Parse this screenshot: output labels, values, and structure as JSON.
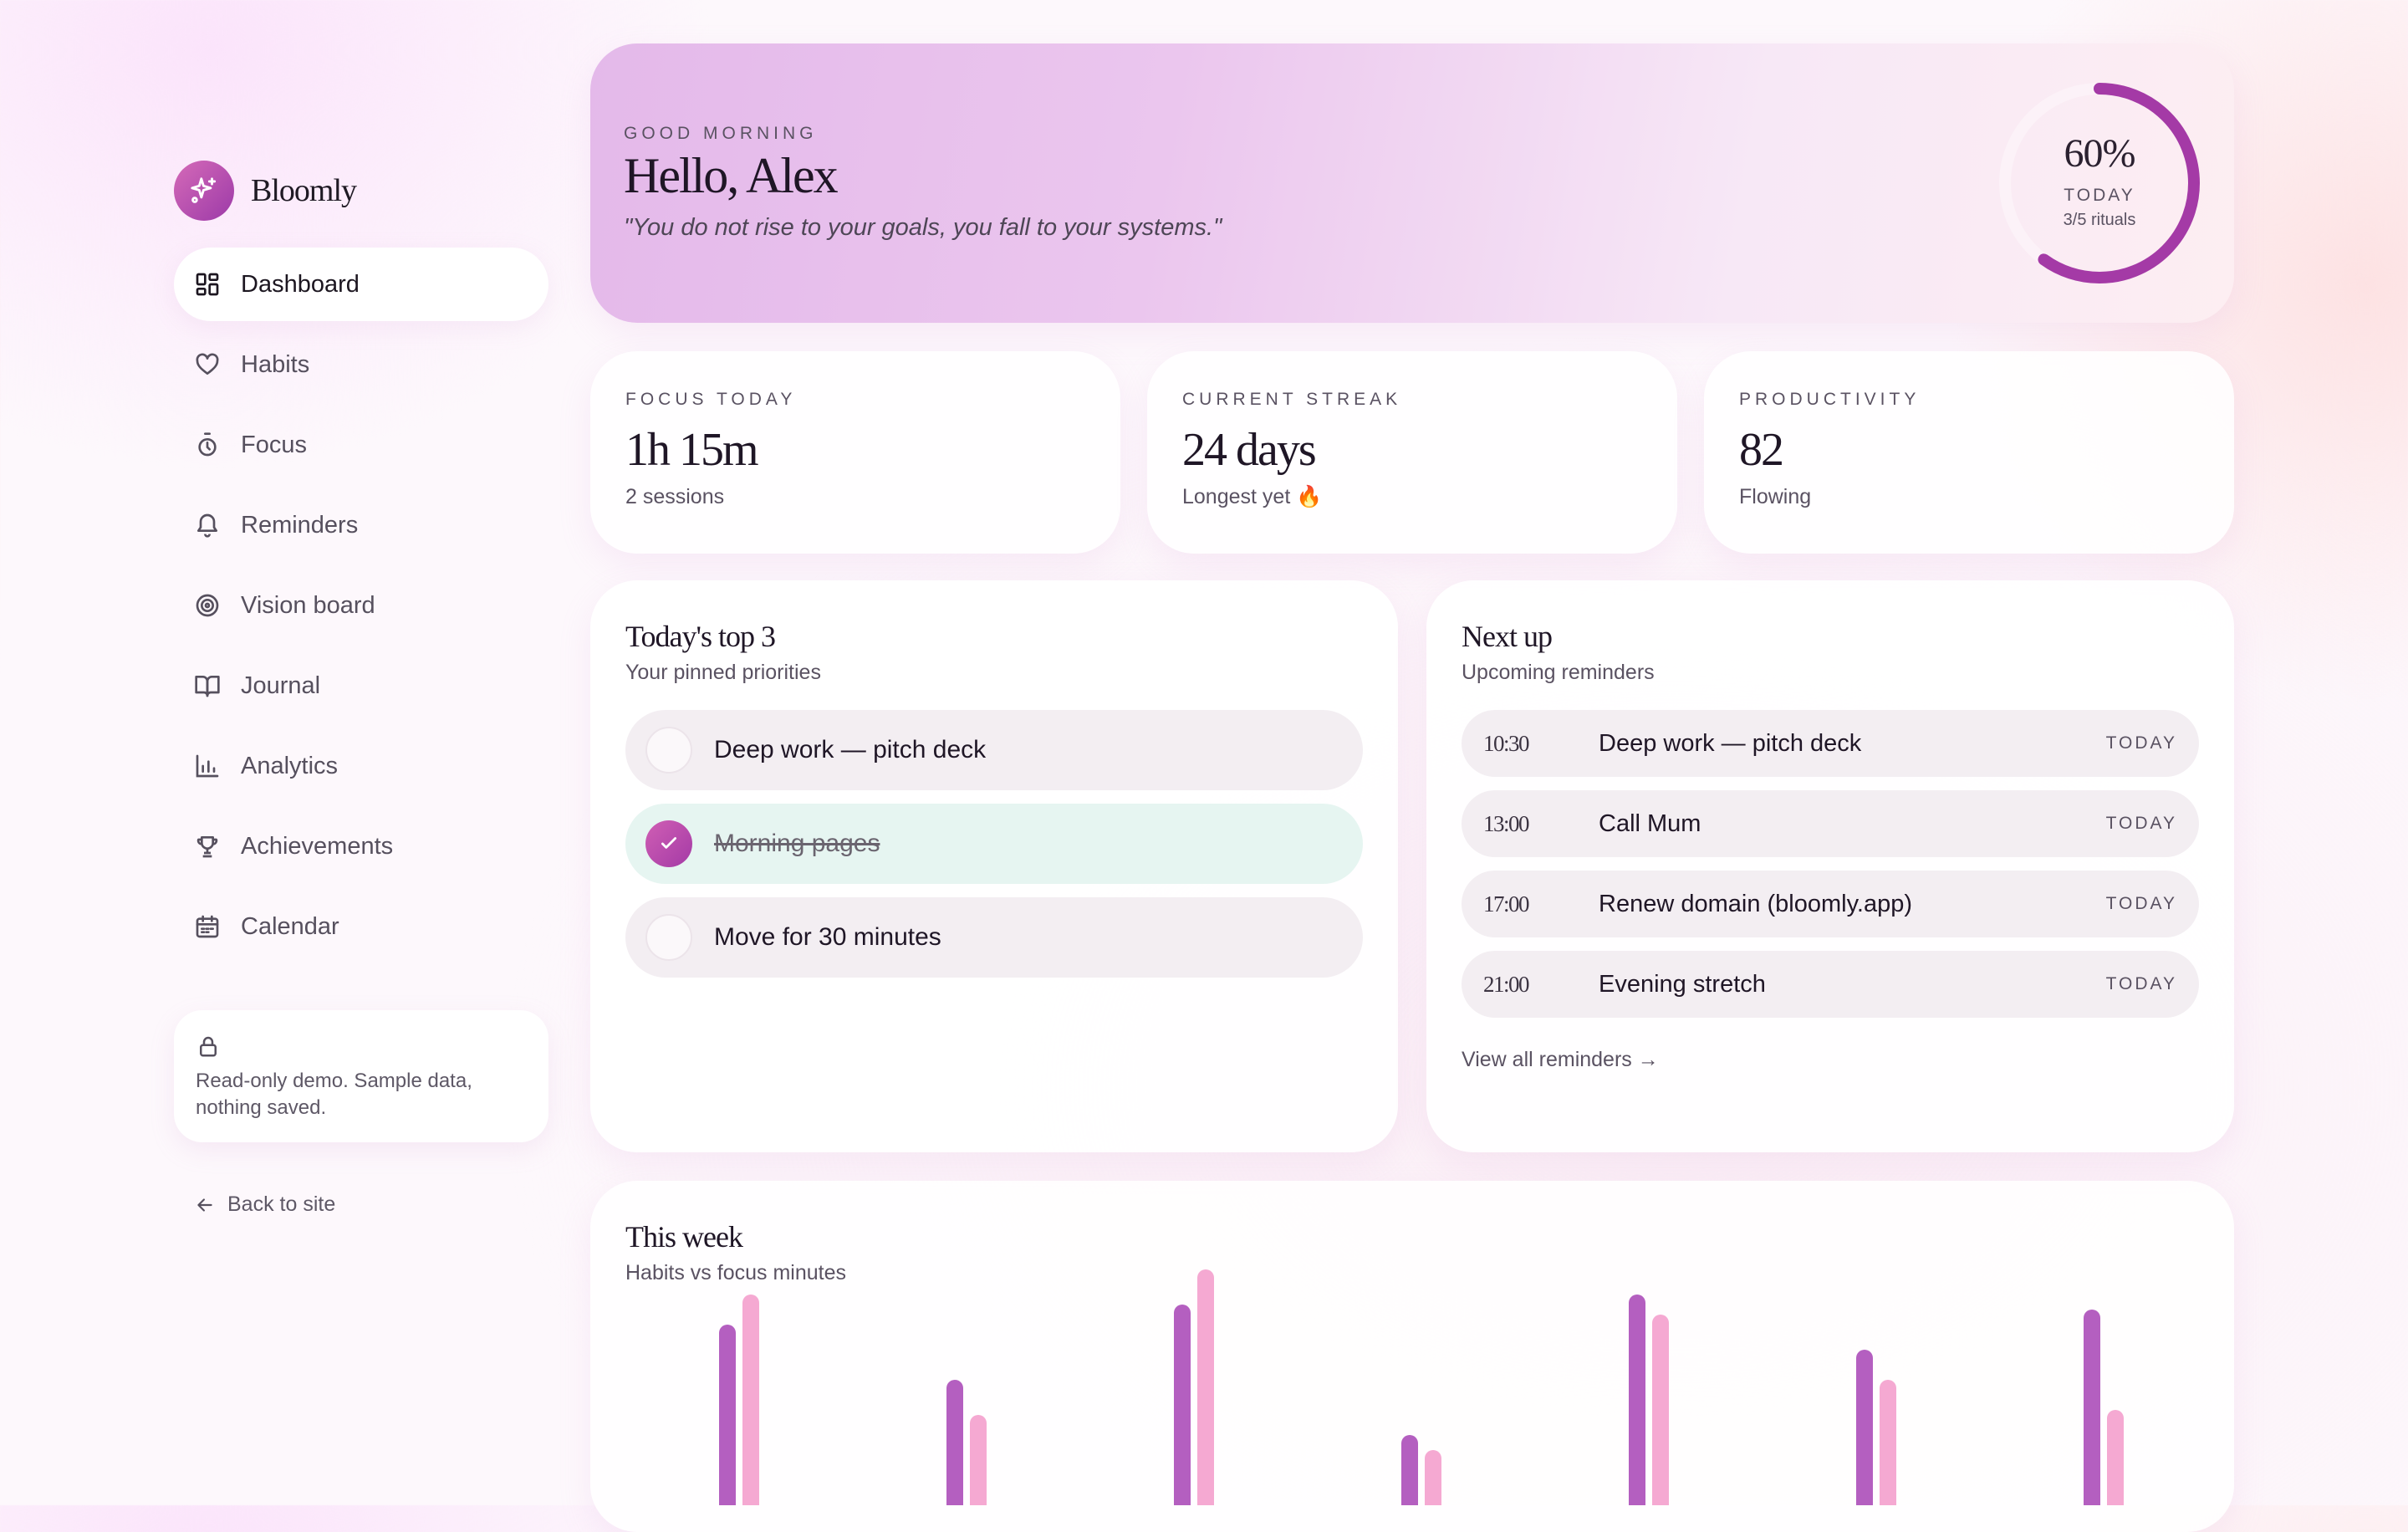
{
  "app": {
    "name": "Bloomly"
  },
  "sidebar": {
    "items": [
      {
        "label": "Dashboard",
        "icon": "grid-icon",
        "active": true
      },
      {
        "label": "Habits",
        "icon": "heart-icon"
      },
      {
        "label": "Focus",
        "icon": "timer-icon"
      },
      {
        "label": "Reminders",
        "icon": "bell-icon"
      },
      {
        "label": "Vision board",
        "icon": "target-icon"
      },
      {
        "label": "Journal",
        "icon": "book-icon"
      },
      {
        "label": "Analytics",
        "icon": "bar-chart-icon"
      },
      {
        "label": "Achievements",
        "icon": "trophy-icon"
      },
      {
        "label": "Calendar",
        "icon": "calendar-icon"
      }
    ],
    "demo_note": "Read-only demo. Sample data, nothing saved.",
    "back_link": "Back to site"
  },
  "hero": {
    "greeting": "GOOD MORNING",
    "title": "Hello, Alex",
    "quote": "\"You do not rise to your goals, you fall to your systems.\"",
    "progress_value": 0.6,
    "progress_text": "60%",
    "progress_label": "TODAY",
    "progress_sub": "3/5 rituals"
  },
  "stats": [
    {
      "label": "FOCUS TODAY",
      "value": "1h 15m",
      "sub": "2 sessions"
    },
    {
      "label": "CURRENT STREAK",
      "value": "24 days",
      "sub": "Longest yet 🔥"
    },
    {
      "label": "PRODUCTIVITY",
      "value": "82",
      "sub": "Flowing"
    }
  ],
  "priorities": {
    "title": "Today's top 3",
    "subtitle": "Your pinned priorities",
    "items": [
      {
        "text": "Deep work — pitch deck",
        "done": false
      },
      {
        "text": "Morning pages",
        "done": true
      },
      {
        "text": "Move for 30 minutes",
        "done": false
      }
    ]
  },
  "next_up": {
    "title": "Next up",
    "subtitle": "Upcoming reminders",
    "items": [
      {
        "time": "10:30",
        "text": "Deep work — pitch deck",
        "tag": "TODAY"
      },
      {
        "time": "13:00",
        "text": "Call Mum",
        "tag": "TODAY"
      },
      {
        "time": "17:00",
        "text": "Renew domain (bloomly.app)",
        "tag": "TODAY"
      },
      {
        "time": "21:00",
        "text": "Evening stretch",
        "tag": "TODAY"
      }
    ],
    "view_all": "View all reminders →"
  },
  "week": {
    "title": "This week",
    "subtitle": "Habits vs focus minutes"
  },
  "chart_data": {
    "type": "bar",
    "categories": [
      "",
      "",
      "",
      "",
      "",
      "",
      ""
    ],
    "series": [
      {
        "values": [
          72,
          50,
          80,
          28,
          84,
          62,
          78
        ],
        "color": "#b45fc0"
      },
      {
        "values": [
          84,
          36,
          94,
          22,
          76,
          50,
          38
        ],
        "color": "#f5a9d2"
      }
    ],
    "ylim": [
      0,
      100
    ]
  },
  "colors": {
    "accent": "#a43aa6",
    "accent_light": "#d56ab8",
    "done_bg": "#e6f5f1"
  }
}
